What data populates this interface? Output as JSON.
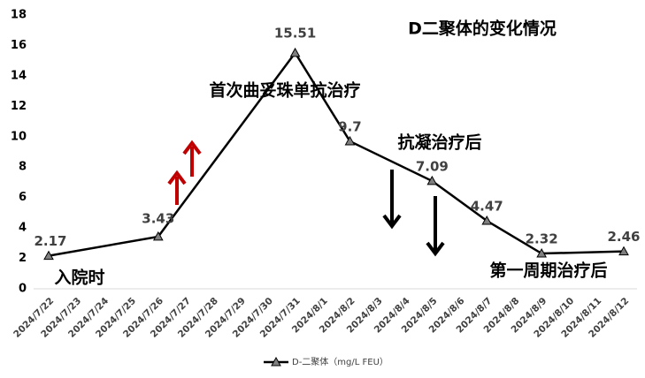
{
  "chart_data": {
    "type": "line",
    "title": "D二聚体的变化情况",
    "x": [
      "2024/7/22",
      "2024/7/26",
      "2024/7/31",
      "2024/8/2",
      "2024/8/5",
      "2024/8/7",
      "2024/8/9",
      "2024/8/12"
    ],
    "xticks": [
      "2024/7/22",
      "2024/7/23",
      "2024/7/24",
      "2024/7/25",
      "2024/7/26",
      "2024/7/27",
      "2024/7/28",
      "2024/7/29",
      "2024/7/30",
      "2024/7/31",
      "2024/8/1",
      "2024/8/2",
      "2024/8/3",
      "2024/8/4",
      "2024/8/5",
      "2024/8/6",
      "2024/8/7",
      "2024/8/8",
      "2024/8/9",
      "2024/8/10",
      "2024/8/11",
      "2024/8/12"
    ],
    "series": [
      {
        "name": "D-二聚体（mg/L FEU）",
        "color": "#000000",
        "marker_color": "#7f7f7f",
        "values": [
          2.17,
          3.43,
          15.51,
          9.7,
          7.09,
          4.47,
          2.32,
          2.46
        ]
      }
    ],
    "ylim": [
      0,
      18
    ],
    "yticks": [
      0,
      2,
      4,
      6,
      8,
      10,
      12,
      14,
      16,
      18
    ],
    "grid": false,
    "annotations": [
      "首次曲妥珠单抗治疗",
      "抗凝治疗后",
      "入院时",
      "第一周期治疗后"
    ],
    "legend": "bottom"
  }
}
